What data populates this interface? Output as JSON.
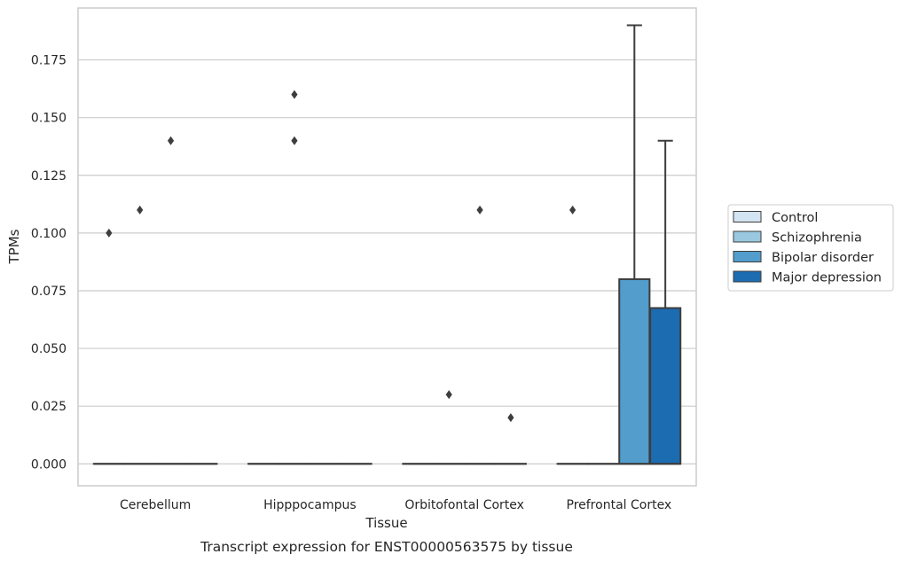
{
  "chart_data": {
    "type": "box",
    "title": "",
    "caption": "Transcript expression for ENST00000563575 by tissue",
    "xlabel": "Tissue",
    "ylabel": "TPMs",
    "ylim": [
      -0.0095,
      0.1975
    ],
    "yticks": [
      "0.000",
      "0.025",
      "0.050",
      "0.075",
      "0.100",
      "0.125",
      "0.150",
      "0.175"
    ],
    "grid": "horizontal",
    "legend_position": "right",
    "categories": [
      "Cerebellum",
      "Hipppocampus",
      "Orbitofontal Cortex",
      "Prefrontal Cortex"
    ],
    "series": [
      {
        "name": "Control",
        "color": "#d3e4f3",
        "boxes": [
          {
            "q1": 0,
            "median": 0,
            "q3": 0,
            "whisker_low": 0,
            "whisker_high": 0,
            "outliers": [
              0.1
            ]
          },
          {
            "q1": 0,
            "median": 0,
            "q3": 0,
            "whisker_low": 0,
            "whisker_high": 0,
            "outliers": []
          },
          {
            "q1": 0,
            "median": 0,
            "q3": 0,
            "whisker_low": 0,
            "whisker_high": 0,
            "outliers": []
          },
          {
            "q1": 0,
            "median": 0,
            "q3": 0,
            "whisker_low": 0,
            "whisker_high": 0,
            "outliers": [
              0.11
            ]
          }
        ]
      },
      {
        "name": "Schizophrenia",
        "color": "#9ac8e0",
        "boxes": [
          {
            "q1": 0,
            "median": 0,
            "q3": 0,
            "whisker_low": 0,
            "whisker_high": 0,
            "outliers": [
              0.11
            ]
          },
          {
            "q1": 0,
            "median": 0,
            "q3": 0,
            "whisker_low": 0,
            "whisker_high": 0,
            "outliers": [
              0.14,
              0.16
            ]
          },
          {
            "q1": 0,
            "median": 0,
            "q3": 0,
            "whisker_low": 0,
            "whisker_high": 0,
            "outliers": [
              0.03
            ]
          },
          {
            "q1": 0,
            "median": 0,
            "q3": 0,
            "whisker_low": 0,
            "whisker_high": 0,
            "outliers": []
          }
        ]
      },
      {
        "name": "Bipolar disorder",
        "color": "#529dcc",
        "boxes": [
          {
            "q1": 0,
            "median": 0,
            "q3": 0,
            "whisker_low": 0,
            "whisker_high": 0,
            "outliers": [
              0.14
            ]
          },
          {
            "q1": 0,
            "median": 0,
            "q3": 0,
            "whisker_low": 0,
            "whisker_high": 0,
            "outliers": []
          },
          {
            "q1": 0,
            "median": 0,
            "q3": 0,
            "whisker_low": 0,
            "whisker_high": 0,
            "outliers": [
              0.11
            ]
          },
          {
            "q1": 0,
            "median": 0,
            "q3": 0.08,
            "whisker_low": 0,
            "whisker_high": 0.19,
            "outliers": []
          }
        ]
      },
      {
        "name": "Major depression",
        "color": "#1c6cb1",
        "boxes": [
          {
            "q1": 0,
            "median": 0,
            "q3": 0,
            "whisker_low": 0,
            "whisker_high": 0,
            "outliers": []
          },
          {
            "q1": 0,
            "median": 0,
            "q3": 0,
            "whisker_low": 0,
            "whisker_high": 0,
            "outliers": []
          },
          {
            "q1": 0,
            "median": 0,
            "q3": 0,
            "whisker_low": 0,
            "whisker_high": 0,
            "outliers": [
              0.02
            ]
          },
          {
            "q1": 0,
            "median": 0,
            "q3": 0.0675,
            "whisker_low": 0,
            "whisker_high": 0.14,
            "outliers": []
          }
        ]
      }
    ]
  }
}
